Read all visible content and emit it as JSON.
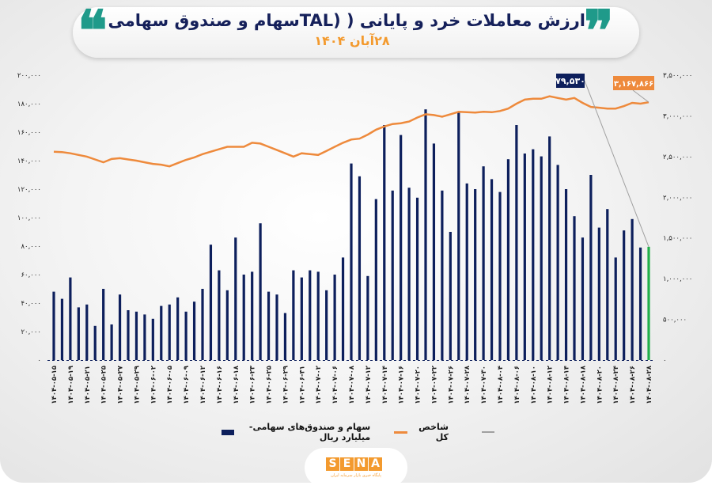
{
  "header": {
    "title": "ارزش معاملات خرد و پایانی ( (TALسهام و صندوق سهامی",
    "subtitle": "۲۸آبان ۱۴۰۴",
    "quote_open": "❞",
    "quote_close": "❝"
  },
  "colors": {
    "bars": "#0d1f5c",
    "last_bar": "#22b04b",
    "line": "#ee8a3c",
    "accent_teal": "#1f9a8a",
    "leader": "#a0a0a0"
  },
  "legend": {
    "bars": "سهام و صندوق‌های سهامی- میلیارد ریال",
    "line": "شاخص کل"
  },
  "logo": {
    "text": "SENA",
    "letters": [
      "S",
      "E",
      "N",
      "A"
    ],
    "tagline": "پایگاه خبری بازار سرمایه ایران"
  },
  "chart_data": {
    "type": "bar+line",
    "title": "ارزش معاملات خرد و پایانی ( (TALسهام و صندوق سهامی",
    "subtitle": "۲۸آبان ۱۴۰۴",
    "grid": false,
    "legend_position": "bottom",
    "y_left": {
      "range": [
        0,
        200000
      ],
      "ticks": [
        "۰",
        "۲۰,۰۰۰",
        "۴۰,۰۰۰",
        "۶۰,۰۰۰",
        "۸۰,۰۰۰",
        "۱۰۰,۰۰۰",
        "۱۲۰,۰۰۰",
        "۱۴۰,۰۰۰",
        "۱۶۰,۰۰۰",
        "۱۸۰,۰۰۰",
        "۲۰۰,۰۰۰"
      ]
    },
    "y_right": {
      "range": [
        0,
        3500000
      ],
      "ticks": [
        "۰",
        "۵۰۰,۰۰۰",
        "۱,۰۰۰,۰۰۰",
        "۱,۵۰۰,۰۰۰",
        "۲,۰۰۰,۰۰۰",
        "۲,۵۰۰,۰۰۰",
        "۳,۰۰۰,۰۰۰",
        "۳,۵۰۰,۰۰۰"
      ]
    },
    "x_tick_labels": [
      "۱۴۰۴-۰۵-۱۵",
      "۱۴۰۴-۰۵-۱۹",
      "۱۴۰۴-۰۵-۲۱",
      "۱۴۰۴-۰۵-۲۵",
      "۱۴۰۴-۰۵-۲۷",
      "۱۴۰۴-۰۵-۲۹",
      "۱۴۰۴-۰۶-۰۲",
      "۱۴۰۴-۰۶-۰۵",
      "۱۴۰۴-۰۶-۰۹",
      "۱۴۰۴-۰۶-۱۲",
      "۱۴۰۴-۰۶-۱۶",
      "۱۴۰۴-۰۶-۱۸",
      "۱۴۰۴-۰۶-۲۳",
      "۱۴۰۴-۰۶-۲۵",
      "۱۴۰۴-۰۶-۲۹",
      "۱۴۰۴-۰۶-۳۱",
      "۱۴۰۴-۰۷-۰۲",
      "۱۴۰۴-۰۷-۰۶",
      "۱۴۰۴-۰۷-۰۸",
      "۱۴۰۴-۰۷-۱۲",
      "۱۴۰۴-۰۷-۱۴",
      "۱۴۰۴-۰۷-۱۶",
      "۱۴۰۴-۰۷-۲۰",
      "۱۴۰۴-۰۷-۲۲",
      "۱۴۰۴-۰۷-۲۶",
      "۱۴۰۴-۰۷-۲۸",
      "۱۴۰۴-۰۷-۳۰",
      "۱۴۰۴-۰۸-۰۴",
      "۱۴۰۴-۰۸-۰۶",
      "۱۴۰۴-۰۸-۱۰",
      "۱۴۰۴-۰۸-۱۲",
      "۱۴۰۴-۰۸-۱۴",
      "۱۴۰۴-۰۸-۱۸",
      "۱۴۰۴-۰۸-۲۰",
      "۱۴۰۴-۰۸-۲۴",
      "۱۴۰۴-۰۸-۲۶",
      "۱۴۰۴-۰۸-۲۸"
    ],
    "series": [
      {
        "name": "سهام و صندوق‌های سهامی- میلیارد ریال",
        "type": "bar",
        "axis": "left",
        "values": [
          48000,
          43000,
          58000,
          37000,
          39000,
          24000,
          50000,
          25000,
          46000,
          35000,
          34000,
          32000,
          29000,
          38000,
          39000,
          44000,
          34000,
          41000,
          50000,
          81000,
          63000,
          49000,
          86000,
          60000,
          62000,
          96000,
          48000,
          46000,
          33000,
          63000,
          58000,
          63000,
          62000,
          49000,
          60000,
          72000,
          138000,
          129000,
          59000,
          113000,
          165000,
          119000,
          158000,
          121000,
          114000,
          176000,
          152000,
          119000,
          90000,
          174000,
          124000,
          120000,
          136000,
          127000,
          118000,
          141000,
          165000,
          145000,
          148000,
          143000,
          157000,
          137000,
          120000,
          101000,
          86000,
          130000,
          93000,
          106000,
          72000,
          91000,
          99000,
          79000,
          79530
        ]
      },
      {
        "name": "شاخص کل",
        "type": "line",
        "axis": "right",
        "values": [
          2560000,
          2555000,
          2540000,
          2520000,
          2500000,
          2465000,
          2430000,
          2470000,
          2480000,
          2465000,
          2450000,
          2430000,
          2410000,
          2400000,
          2380000,
          2420000,
          2460000,
          2490000,
          2530000,
          2560000,
          2590000,
          2620000,
          2620000,
          2620000,
          2670000,
          2660000,
          2620000,
          2580000,
          2540000,
          2500000,
          2540000,
          2530000,
          2520000,
          2570000,
          2620000,
          2670000,
          2710000,
          2720000,
          2770000,
          2830000,
          2870000,
          2900000,
          2910000,
          2930000,
          2980000,
          3020000,
          3010000,
          2990000,
          3020000,
          3050000,
          3045000,
          3040000,
          3050000,
          3045000,
          3060000,
          3090000,
          3150000,
          3200000,
          3210000,
          3210000,
          3240000,
          3220000,
          3200000,
          3220000,
          3160000,
          3110000,
          3100000,
          3090000,
          3090000,
          3120000,
          3160000,
          3150000,
          3167866
        ]
      }
    ],
    "annotations": {
      "last_bar": "۷۹,۵۳۰",
      "last_index": "۳,۱۶۷,۸۶۶"
    }
  }
}
